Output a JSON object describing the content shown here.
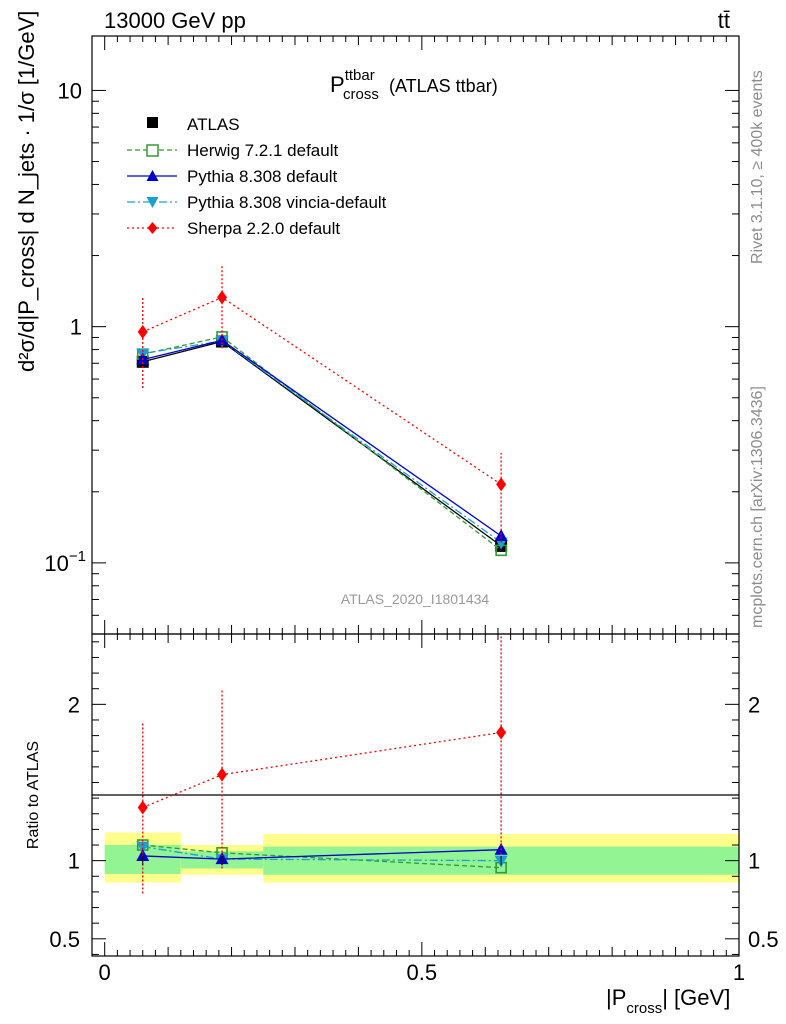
{
  "header": {
    "energy_label": "13000 GeV pp",
    "process_label": "tt̄"
  },
  "side_labels": {
    "rivet": "Rivet 3.1.10, ≥ 400k events",
    "mcplots": "mcplots.cern.ch [arXiv:1306.3436]"
  },
  "chart_data": [
    {
      "type": "line",
      "panel": "main",
      "title_main": "P",
      "title_sup": "ttbar",
      "title_sub": "cross",
      "title_rest": " (ATLAS ttbar)",
      "analysis_label": "ATLAS_2020_I1801434",
      "y_scale": "log",
      "ylim": [
        0.05,
        17
      ],
      "xlim": [
        -0.02,
        1.0
      ],
      "ylabel": "d²σ/d|P_cross| d N_jets · 1/σ [1/GeV]",
      "y_ticks": [
        {
          "value": 0.1,
          "base": "10",
          "exp": "−1"
        },
        {
          "value": 1,
          "base": "1",
          "exp": ""
        },
        {
          "value": 10,
          "base": "10",
          "exp": ""
        }
      ],
      "legend": [
        "ATLAS",
        "Herwig 7.2.1 default",
        "Pythia 8.308 default",
        "Pythia 8.308 vincia-default",
        "Sherpa 2.2.0 default"
      ],
      "series": [
        {
          "name": "ATLAS",
          "color": "#000000",
          "marker": "square-filled",
          "x": [
            0.06,
            0.185,
            0.625
          ],
          "values": [
            0.71,
            0.865,
            0.118
          ]
        },
        {
          "name": "Herwig 7.2.1 default",
          "color": "#339933",
          "marker": "square-open",
          "dash": "5,3",
          "x": [
            0.06,
            0.185,
            0.625
          ],
          "values": [
            0.765,
            0.905,
            0.113
          ]
        },
        {
          "name": "Pythia 8.308 default",
          "color": "#0000cc",
          "marker": "triangle-up",
          "x": [
            0.06,
            0.185,
            0.625
          ],
          "values": [
            0.725,
            0.875,
            0.13
          ]
        },
        {
          "name": "Pythia 8.308 vincia-default",
          "color": "#1a9fd1",
          "marker": "triangle-down",
          "dash": "8,3,2,3",
          "x": [
            0.06,
            0.185,
            0.625
          ],
          "values": [
            0.77,
            0.87,
            0.122
          ]
        },
        {
          "name": "Sherpa 2.2.0 default",
          "color": "#ff0000",
          "marker": "diamond",
          "dash": "2,3",
          "x": [
            0.06,
            0.185,
            0.625
          ],
          "values": [
            0.95,
            1.33,
            0.215
          ],
          "err_low": [
            0.4,
            0.52,
            0.093
          ],
          "err_high": [
            0.4,
            0.5,
            0.077
          ]
        }
      ]
    },
    {
      "type": "line",
      "panel": "ratio",
      "ylabel": "Ratio to ATLAS",
      "xlabel": "|P_cross| [GeV]",
      "xlabel_main": "|P",
      "xlabel_sub": "cross",
      "xlabel_rest": "| [GeV]",
      "ylim": [
        0.39,
        2.45
      ],
      "xlim": [
        -0.02,
        1.0
      ],
      "y_ticks": [
        0.5,
        1,
        2
      ],
      "y_tick_labels": [
        "0.5",
        "1",
        "2"
      ],
      "x_ticks": [
        0,
        0.5,
        1
      ],
      "x_tick_labels": [
        "0",
        "0.5",
        "1"
      ],
      "bands": [
        {
          "x0": 0.0,
          "x1": 0.12,
          "inner": [
            0.915,
            1.1
          ],
          "outer": [
            0.86,
            1.18
          ]
        },
        {
          "x0": 0.12,
          "x1": 0.25,
          "inner": [
            0.95,
            1.06
          ],
          "outer": [
            0.91,
            1.1
          ]
        },
        {
          "x0": 0.25,
          "x1": 1.0,
          "inner": [
            0.91,
            1.09
          ],
          "outer": [
            0.86,
            1.17
          ]
        }
      ],
      "series": [
        {
          "name": "Herwig 7.2.1 default",
          "color": "#339933",
          "marker": "square-open",
          "dash": "5,3",
          "x": [
            0.06,
            0.185,
            0.625
          ],
          "values": [
            1.1,
            1.05,
            0.955
          ]
        },
        {
          "name": "Pythia 8.308 default",
          "color": "#0000cc",
          "marker": "triangle-up",
          "x": [
            0.06,
            0.185,
            0.625
          ],
          "values": [
            1.03,
            1.01,
            1.07
          ]
        },
        {
          "name": "Pythia 8.308 vincia-default",
          "color": "#1a9fd1",
          "marker": "triangle-down",
          "dash": "8,3,2,3",
          "x": [
            0.06,
            0.185,
            0.625
          ],
          "values": [
            1.09,
            1.01,
            1.0
          ]
        },
        {
          "name": "Sherpa 2.2.0 default",
          "color": "#ff0000",
          "marker": "diamond",
          "dash": "2,3",
          "x": [
            0.06,
            0.185,
            0.625
          ],
          "values": [
            1.34,
            1.55,
            1.82
          ],
          "err_low": [
            0.55,
            0.6,
            0.78
          ],
          "err_high": [
            0.55,
            0.55,
            0.63
          ]
        }
      ]
    }
  ]
}
